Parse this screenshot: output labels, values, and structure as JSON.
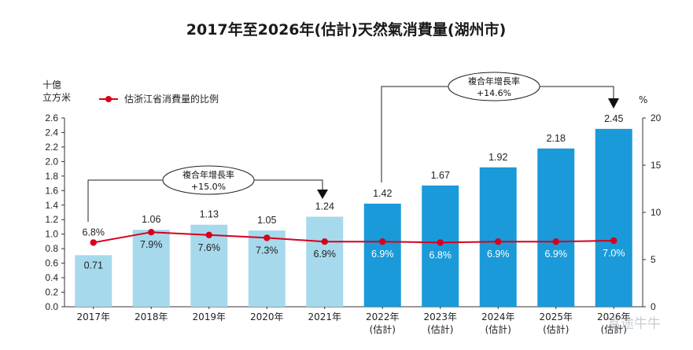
{
  "title": "2017年至2026年(估計)天然氣消費量(湖州市)",
  "left_unit": [
    "十億",
    "立方米"
  ],
  "right_unit": "%",
  "legend_label": "估浙江省消費量的比例",
  "callout_1": {
    "line1": "複合年增長率",
    "line2": "+15.0%"
  },
  "callout_2": {
    "line1": "複合年增長率",
    "line2": "+14.6%"
  },
  "watermark": "富途牛牛",
  "colors": {
    "actual_bar": "#a6d9ec",
    "forecast_bar": "#1a9ad9",
    "line": "#d6001c",
    "axis": "#333333"
  },
  "chart_data": {
    "type": "bar",
    "categories": [
      "2017年",
      "2018年",
      "2019年",
      "2020年",
      "2021年",
      "2022年",
      "2023年",
      "2024年",
      "2025年",
      "2026年"
    ],
    "category_sublabels": [
      "",
      "",
      "",
      "",
      "",
      "(估計)",
      "(估計)",
      "(估計)",
      "(估計)",
      "(估計)"
    ],
    "series": [
      {
        "values": [
          0.71,
          1.06,
          1.13,
          1.05,
          1.24,
          1.42,
          1.67,
          1.92,
          2.18,
          2.45
        ],
        "value_labels": [
          "0.71",
          "1.06",
          "1.13",
          "1.05",
          "1.24",
          "1.42",
          "1.67",
          "1.92",
          "2.18",
          "2.45"
        ],
        "axis": "left",
        "forecast_from_index": 5
      },
      {
        "name": "估浙江省消費量的比例",
        "type": "line",
        "values": [
          6.8,
          7.9,
          7.6,
          7.3,
          6.9,
          6.9,
          6.8,
          6.9,
          6.9,
          7.0
        ],
        "value_labels": [
          "6.8%",
          "7.9%",
          "7.6%",
          "7.3%",
          "6.9%",
          "6.9%",
          "6.8%",
          "6.9%",
          "6.9%",
          "7.0%"
        ],
        "axis": "right"
      }
    ],
    "ylim_left": [
      0,
      2.6
    ],
    "yticks_left": [
      "0.0",
      "0.2",
      "0.4",
      "0.6",
      "0.8",
      "1.0",
      "1.2",
      "1.4",
      "1.6",
      "1.8",
      "2.0",
      "2.2",
      "2.4",
      "2.6"
    ],
    "ylim_right": [
      0,
      20
    ],
    "yticks_right": [
      "0",
      "5",
      "10",
      "15",
      "20"
    ],
    "annotations": [
      {
        "text": "複合年增長率 +15.0%",
        "from": "2017年",
        "to": "2021年"
      },
      {
        "text": "複合年增長率 +14.6%",
        "from": "2022年",
        "to": "2026年"
      }
    ],
    "grid": false,
    "legend": "top-left"
  }
}
